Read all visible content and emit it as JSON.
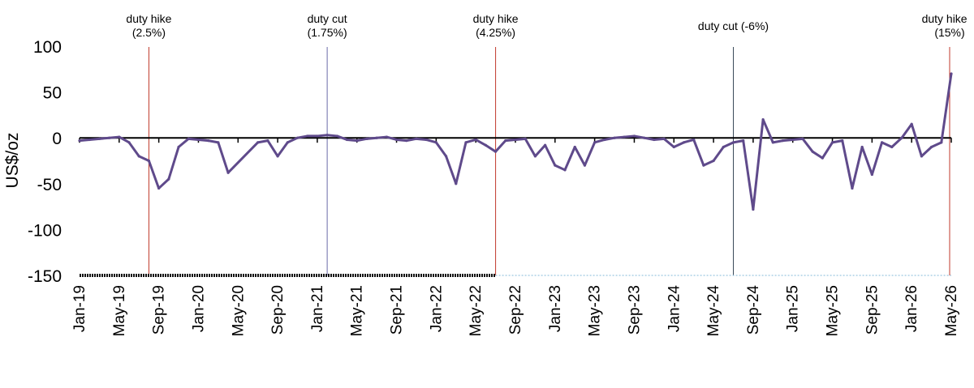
{
  "chart_data": {
    "type": "line",
    "title": "",
    "xlabel": "",
    "ylabel": "US$/oz",
    "ylim": [
      -150,
      100
    ],
    "yticks": [
      100,
      50,
      0,
      -50,
      -100,
      -150
    ],
    "x_tick_labels": [
      "Jan-19",
      "May-19",
      "Sep-19",
      "Jan-20",
      "May-20",
      "Sep-20",
      "Jan-21",
      "May-21",
      "Sep-21",
      "Jan-22",
      "May-22",
      "Sep-22",
      "Jan-23",
      "May-23",
      "Sep-23",
      "Jan-24",
      "May-24",
      "Sep-24",
      "Jan-25",
      "May-25",
      "Sep-25",
      "Jan-26",
      "May-26"
    ],
    "xlim": [
      "2019-01",
      "2026-05"
    ],
    "line_color": "#5f4a8b",
    "series": [
      {
        "name": "",
        "x": [
          "2019-01",
          "2019-02",
          "2019-03",
          "2019-04",
          "2019-05",
          "2019-06",
          "2019-07",
          "2019-08",
          "2019-09",
          "2019-10",
          "2019-11",
          "2019-12",
          "2020-01",
          "2020-02",
          "2020-03",
          "2020-04",
          "2020-07",
          "2020-08",
          "2020-09",
          "2020-10",
          "2020-11",
          "2020-12",
          "2021-01",
          "2021-02",
          "2021-03",
          "2021-04",
          "2021-05",
          "2021-06",
          "2021-07",
          "2021-08",
          "2021-09",
          "2021-10",
          "2021-11",
          "2021-12",
          "2022-01",
          "2022-02",
          "2022-03",
          "2022-04",
          "2022-05",
          "2022-06",
          "2022-07",
          "2022-08",
          "2022-09",
          "2022-10",
          "2022-11",
          "2022-12",
          "2023-01",
          "2023-02",
          "2023-03",
          "2023-04",
          "2023-05",
          "2023-06",
          "2023-07",
          "2023-08",
          "2023-09",
          "2023-10",
          "2023-11",
          "2023-12",
          "2024-01",
          "2024-02",
          "2024-03",
          "2024-04",
          "2024-05",
          "2024-06",
          "2024-07",
          "2024-08",
          "2024-09",
          "2024-10",
          "2024-11",
          "2024-12",
          "2025-01",
          "2025-02",
          "2025-03",
          "2025-04",
          "2025-05",
          "2025-06",
          "2025-07",
          "2025-08",
          "2025-09",
          "2025-10",
          "2025-11",
          "2025-12",
          "2026-01",
          "2026-02",
          "2026-03",
          "2026-04",
          "2026-05"
        ],
        "values": [
          -3,
          -2,
          -1,
          0,
          1,
          -5,
          -20,
          -25,
          -55,
          -45,
          -10,
          -1,
          -2,
          -3,
          -5,
          -38,
          -5,
          -3,
          -20,
          -5,
          0,
          2,
          2,
          3,
          2,
          -2,
          -3,
          -1,
          0,
          1,
          -2,
          -3,
          -1,
          -2,
          -5,
          -20,
          -50,
          -5,
          -2,
          -8,
          -15,
          -3,
          -2,
          -1,
          -20,
          -8,
          -30,
          -35,
          -10,
          -30,
          -5,
          -2,
          0,
          1,
          2,
          0,
          -2,
          -1,
          -10,
          -5,
          -2,
          -30,
          -25,
          -10,
          -5,
          -3,
          -78,
          20,
          -5,
          -3,
          -2,
          -1,
          -15,
          -22,
          -5,
          -3,
          -55,
          -10,
          -40,
          -5,
          -10,
          0,
          15,
          -20,
          -10,
          -5,
          70
        ]
      }
    ],
    "annotations": [
      {
        "date": "2019-08",
        "lines": [
          "duty hike",
          "(2.5%)"
        ],
        "color": "#c0392b"
      },
      {
        "date": "2021-02",
        "lines": [
          "duty cut",
          "(1.75%)"
        ],
        "color": "#6a6aa8"
      },
      {
        "date": "2022-07",
        "lines": [
          "duty hike",
          "(4.25%)"
        ],
        "color": "#c0392b"
      },
      {
        "date": "2024-07",
        "lines": [
          "duty cut (-6%)"
        ],
        "color": "#3a4a5a"
      },
      {
        "date": "2026-05",
        "lines": [
          "duty hike",
          "(15%)"
        ],
        "color": "#c0392b"
      }
    ],
    "grid": false,
    "legend": "none"
  }
}
